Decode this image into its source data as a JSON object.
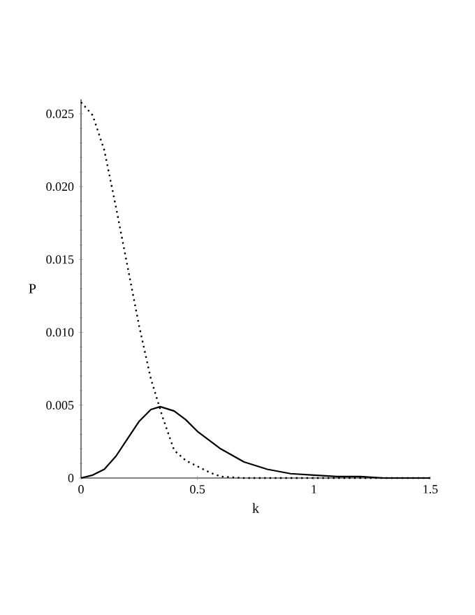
{
  "chart_data": {
    "type": "line",
    "xlabel": "k",
    "ylabel": "P",
    "xlim": [
      0,
      1.5
    ],
    "ylim": [
      0,
      0.026
    ],
    "xticks": [
      0,
      0.5,
      1,
      1.5
    ],
    "yticks": [
      0,
      {
        "value": 0.005,
        "label": "0.005"
      },
      {
        "value": 0.01,
        "label": "0.010"
      },
      {
        "value": 0.015,
        "label": "0.015"
      },
      {
        "value": 0.02,
        "label": "0.020"
      },
      {
        "value": 0.025,
        "label": "0.025"
      }
    ],
    "series": [
      {
        "color": "#000000",
        "line_style": "solid",
        "x": [
          0,
          0.05,
          0.1,
          0.15,
          0.2,
          0.25,
          0.3,
          0.34,
          0.4,
          0.45,
          0.5,
          0.55,
          0.6,
          0.7,
          0.8,
          0.9,
          1.0,
          1.1,
          1.2,
          1.3,
          1.5
        ],
        "values": [
          0,
          0.0002,
          0.0006,
          0.0015,
          0.0027,
          0.0039,
          0.0047,
          0.0049,
          0.0046,
          0.004,
          0.0032,
          0.0026,
          0.002,
          0.0011,
          0.0006,
          0.0003,
          0.0002,
          0.0001,
          0.0001,
          0,
          0
        ]
      },
      {
        "color": "#000000",
        "line_style": "dotted",
        "x": [
          0,
          0.05,
          0.1,
          0.15,
          0.2,
          0.25,
          0.3,
          0.35,
          0.4,
          0.45,
          0.5,
          0.55,
          0.6,
          0.7,
          0.8,
          1.0,
          1.5
        ],
        "values": [
          0.0258,
          0.0249,
          0.0225,
          0.0186,
          0.0145,
          0.0104,
          0.0068,
          0.0042,
          0.0019,
          0.0012,
          0.0008,
          0.0004,
          0.0001,
          0,
          0,
          0,
          0
        ]
      }
    ]
  }
}
